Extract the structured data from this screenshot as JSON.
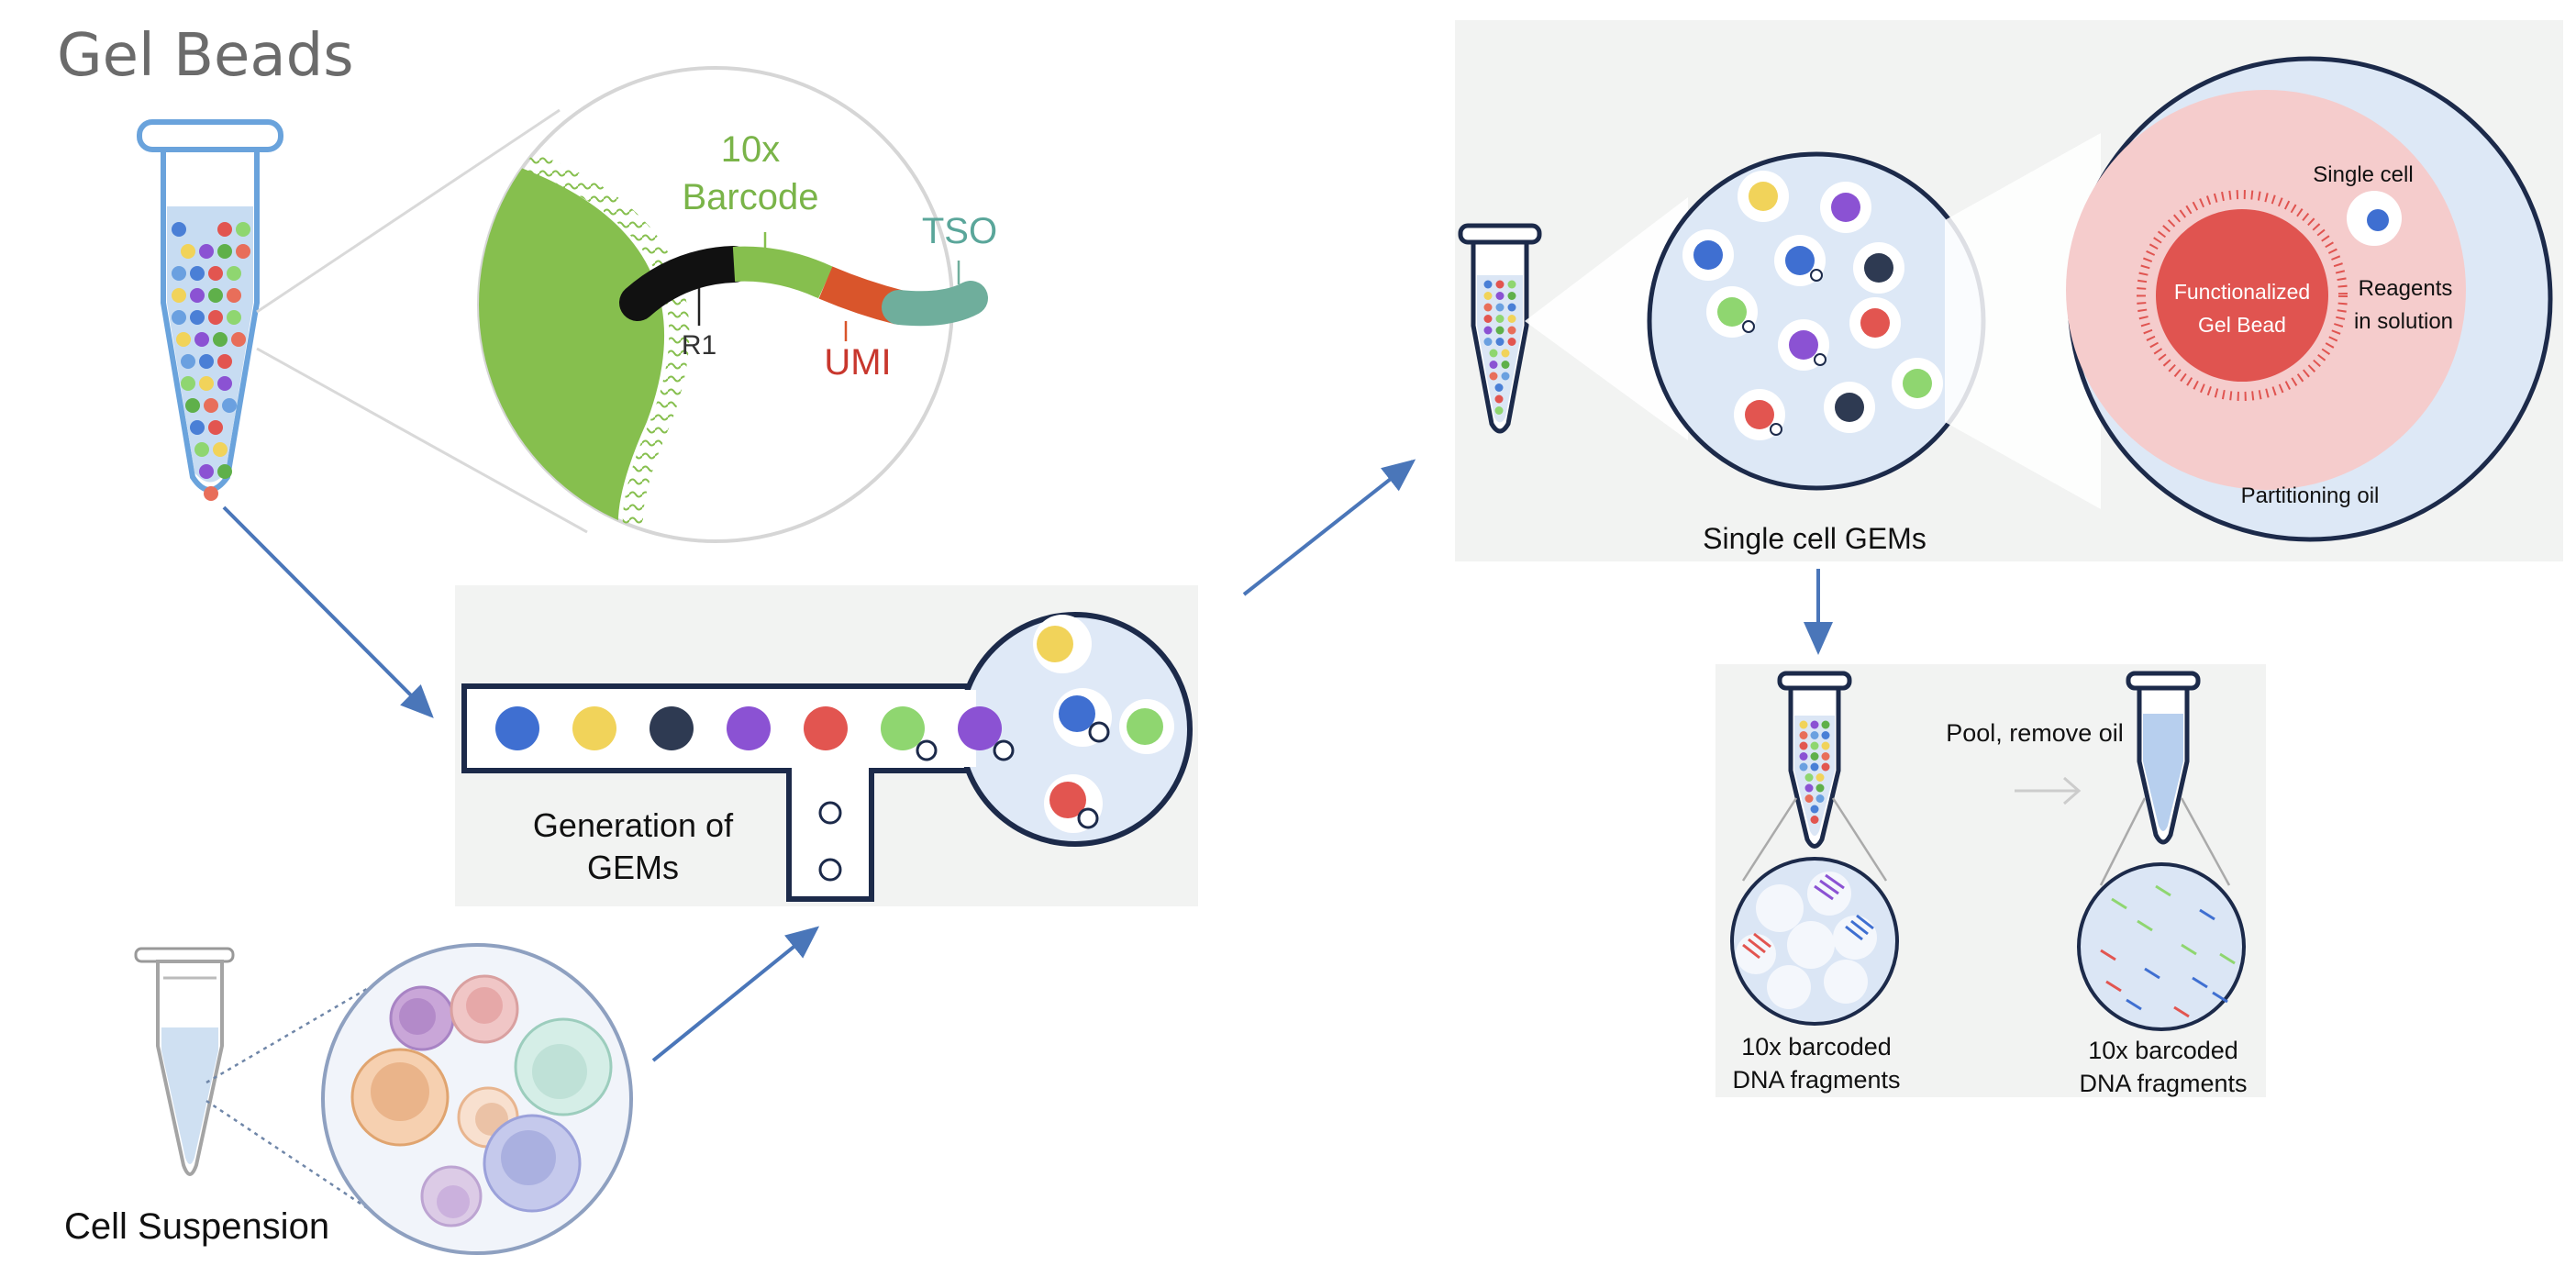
{
  "title": "Gel Beads",
  "bead_zoom": {
    "barcode_label_line1": "10x",
    "barcode_label_line2": "Barcode",
    "tso_label": "TSO",
    "r1_label": "R1",
    "umi_label": "UMI"
  },
  "gem_generation": {
    "label_line1": "Generation of",
    "label_line2": "GEMs",
    "channel_bead_colors": [
      "#3f6fd1",
      "#f1d35a",
      "#2e3a52",
      "#8b52d3",
      "#e25550",
      "#8fd670",
      "#8b52d3"
    ]
  },
  "single_cell_panel": {
    "label": "Single cell GEMs",
    "single_cell_label": "Single cell",
    "bead_label_line1": "Functionalized",
    "bead_label_line2": "Gel Bead",
    "reagents_line1": "Reagents",
    "reagents_line2": "in solution",
    "oil_label": "Partitioning oil"
  },
  "pool_panel": {
    "pool_label": "Pool, remove oil",
    "left_caption_line1": "10x barcoded",
    "left_caption_line2": "DNA fragments",
    "right_caption_line1": "10x barcoded",
    "right_caption_line2": "DNA fragments"
  },
  "cell_suspension_label": "Cell Suspension",
  "colors": {
    "arrow": "#4a76b9",
    "bead_green": "#86bf4e",
    "umi_red": "#c8372d",
    "tso_teal": "#5aa69a",
    "panel_gray": "#f2f3f2",
    "navy": "#1c2a4a"
  }
}
